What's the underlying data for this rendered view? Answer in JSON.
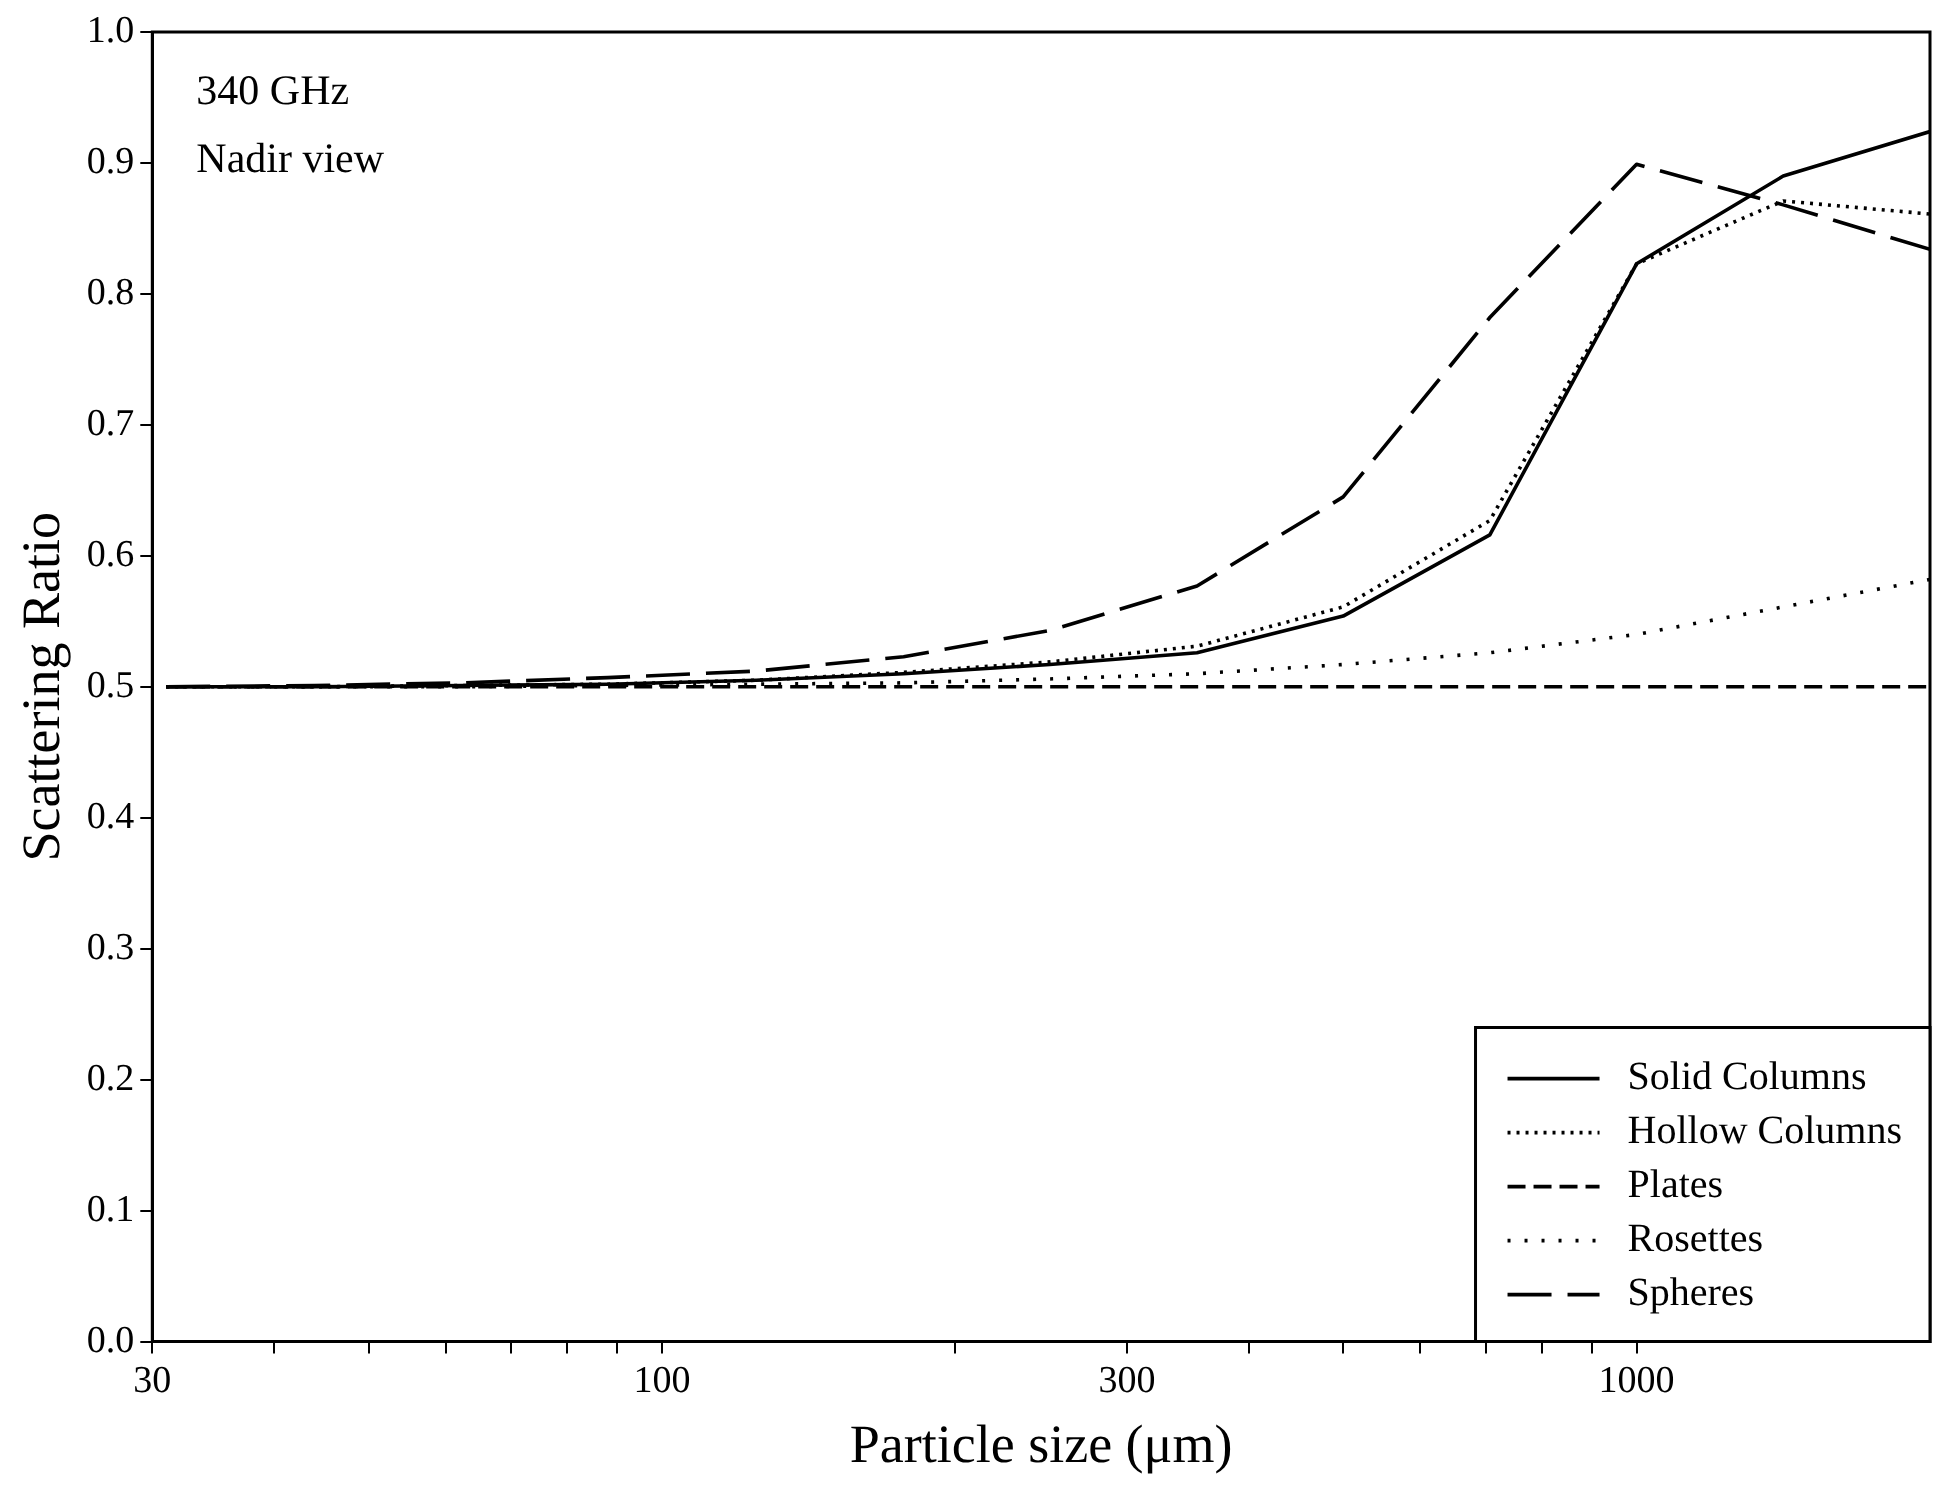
{
  "chart_data": {
    "type": "line",
    "xlabel": "Particle size (μm)",
    "ylabel": "Scattering Ratio",
    "log": "x",
    "xlim": [
      30,
      2000
    ],
    "ylim": [
      0,
      1
    ],
    "xticks": [
      30,
      {
        "value": 40,
        "label": null
      },
      {
        "value": 50,
        "label": null
      },
      {
        "value": 60,
        "label": null
      },
      {
        "value": 70,
        "label": null
      },
      {
        "value": 80,
        "label": null
      },
      {
        "value": 90,
        "label": null
      },
      100,
      {
        "value": 200,
        "label": null
      },
      300,
      {
        "value": 400,
        "label": null
      },
      {
        "value": 500,
        "label": null
      },
      {
        "value": 600,
        "label": null
      },
      {
        "value": 700,
        "label": null
      },
      {
        "value": 800,
        "label": null
      },
      {
        "value": 900,
        "label": null
      },
      1000
    ],
    "yticks": [
      {
        "value": 0,
        "label": "0.0"
      },
      0.1,
      0.2,
      0.3,
      0.4,
      0.5,
      0.6,
      0.7,
      0.8,
      0.9,
      {
        "value": 1,
        "label": "1.0"
      }
    ],
    "x": [
      31,
      44,
      62.5,
      88,
      125,
      177,
      250,
      354,
      500,
      707,
      1000,
      1414,
      2000
    ],
    "series": [
      {
        "name": "Solid Columns",
        "color": "#000000",
        "line_style": "solid",
        "values": [
          0.5,
          0.5,
          0.501,
          0.502,
          0.505,
          0.51,
          0.517,
          0.526,
          0.554,
          0.616,
          0.823,
          0.89,
          0.924
        ]
      },
      {
        "name": "Hollow Columns",
        "color": "#000000",
        "line_style": "dotted",
        "values": [
          0.5,
          0.5,
          0.501,
          0.502,
          0.505,
          0.511,
          0.519,
          0.531,
          0.561,
          0.627,
          0.823,
          0.871,
          0.861
        ]
      },
      {
        "name": "Plates",
        "color": "#000000",
        "line_style": "dashed",
        "values": [
          0.5,
          0.5,
          0.5,
          0.5,
          0.5,
          0.5,
          0.5,
          0.5,
          0.5,
          0.5,
          0.5,
          0.5,
          0.5
        ]
      },
      {
        "name": "Rosettes",
        "color": "#000000",
        "line_style": "sparse-dotted",
        "values": [
          0.5,
          0.5,
          0.5,
          0.501,
          0.502,
          0.503,
          0.506,
          0.51,
          0.517,
          0.526,
          0.54,
          0.561,
          0.582
        ]
      },
      {
        "name": "Spheres",
        "color": "#000000",
        "line_style": "long-dashed",
        "values": [
          0.5,
          0.501,
          0.503,
          0.507,
          0.512,
          0.523,
          0.543,
          0.577,
          0.645,
          0.782,
          0.899,
          0.868,
          0.834
        ]
      }
    ],
    "legend": "bottom right",
    "grid": false,
    "marker": "none",
    "annotations": [
      "340 GHz",
      "Nadir view"
    ]
  }
}
